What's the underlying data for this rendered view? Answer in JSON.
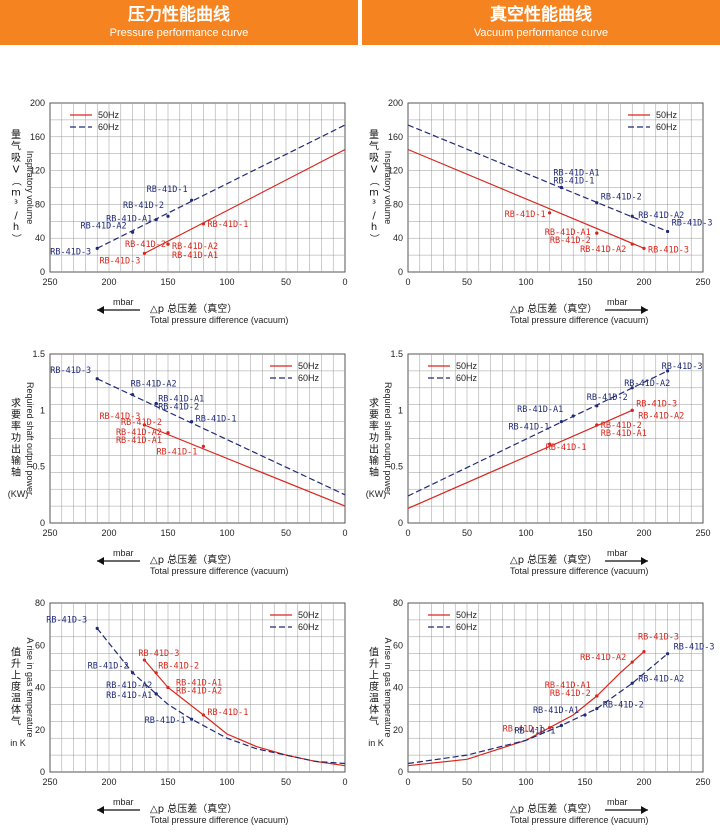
{
  "header": {
    "left": {
      "title": "压力性能曲线",
      "subtitle": "Pressure performance curve",
      "bg": "#f5831f"
    },
    "right": {
      "title": "真空性能曲线",
      "subtitle": "Vacuum performance curve",
      "bg": "#f5831f"
    }
  },
  "colors": {
    "hz50": "#d9261c",
    "hz60": "#1f2a78",
    "grid": "#9a9a9a"
  },
  "axis_footer": {
    "pressure": {
      "unit": "mbar",
      "cn": "△p  总压差（真空）",
      "en": "Total pressure difference (vacuum)"
    },
    "vacuum": {
      "unit": "mbar",
      "cn": "△p  总压差（真空）",
      "en": "Total pressure difference (vacuum)"
    }
  },
  "chart_data": [
    {
      "type": "line",
      "id": "pressure-volume",
      "ylabel_cn": "量气吸V（m³/h）",
      "ylabel_en": "Inspiratory volume",
      "ylabel_unit": "",
      "xlim": [
        250,
        0
      ],
      "ylim": [
        0,
        200
      ],
      "xticks": [
        250,
        200,
        150,
        100,
        50,
        0
      ],
      "yticks": [
        0,
        40,
        80,
        120,
        160,
        200
      ],
      "legend": "top-left",
      "series": [
        {
          "name": "50Hz",
          "style": "solid",
          "x": [
            170,
            0
          ],
          "y": [
            22,
            145
          ]
        },
        {
          "name": "60Hz",
          "style": "dashed",
          "x": [
            210,
            0
          ],
          "y": [
            28,
            174
          ]
        }
      ],
      "labels": [
        {
          "text": "RB-41D-1",
          "s": 0,
          "x": 120,
          "y": 57
        },
        {
          "text": "RB-41D-2",
          "s": 0,
          "x": 150,
          "y": 33
        },
        {
          "text": "RB-41D-A2",
          "s": 0,
          "x": 150,
          "y": 33
        },
        {
          "text": "RB-41D-A1",
          "s": 0,
          "x": 150,
          "y": 33
        },
        {
          "text": "RB-41D-3",
          "s": 0,
          "x": 170,
          "y": 22
        },
        {
          "text": "RB-41D-1",
          "s": 1,
          "x": 130,
          "y": 85
        },
        {
          "text": "RB-41D-2",
          "s": 1,
          "x": 150,
          "y": 66
        },
        {
          "text": "RB-41D-A1",
          "s": 1,
          "x": 160,
          "y": 62
        },
        {
          "text": "RB-41D-A2",
          "s": 1,
          "x": 180,
          "y": 47
        },
        {
          "text": "RB-41D-3",
          "s": 1,
          "x": 210,
          "y": 28
        }
      ]
    },
    {
      "type": "line",
      "id": "vacuum-volume",
      "ylabel_cn": "量气吸V（m³/h）",
      "ylabel_en": "Inspiratory volume",
      "ylabel_unit": "",
      "xlim": [
        0,
        250
      ],
      "ylim": [
        0,
        200
      ],
      "xticks": [
        0,
        50,
        100,
        150,
        200,
        250
      ],
      "yticks": [
        0,
        40,
        80,
        120,
        160,
        200
      ],
      "legend": "top-right",
      "series": [
        {
          "name": "50Hz",
          "style": "solid",
          "x": [
            0,
            200
          ],
          "y": [
            145,
            28
          ]
        },
        {
          "name": "60Hz",
          "style": "dashed",
          "x": [
            0,
            220
          ],
          "y": [
            174,
            48
          ]
        }
      ],
      "labels": [
        {
          "text": "RB-41D-1",
          "s": 0,
          "x": 120,
          "y": 70
        },
        {
          "text": "RB-41D-A1",
          "s": 0,
          "x": 160,
          "y": 46
        },
        {
          "text": "RB-41D-2",
          "s": 0,
          "x": 160,
          "y": 46
        },
        {
          "text": "RB-41D-A2",
          "s": 0,
          "x": 190,
          "y": 33
        },
        {
          "text": "RB-41D-3",
          "s": 0,
          "x": 200,
          "y": 28
        },
        {
          "text": "RB-41D-A1",
          "s": 1,
          "x": 130,
          "y": 100
        },
        {
          "text": "RB-41D-1",
          "s": 1,
          "x": 130,
          "y": 100
        },
        {
          "text": "RB-41D-2",
          "s": 1,
          "x": 160,
          "y": 82
        },
        {
          "text": "RB-41D-A2",
          "s": 1,
          "x": 190,
          "y": 66
        },
        {
          "text": "RB-41D-3",
          "s": 1,
          "x": 220,
          "y": 48
        }
      ]
    },
    {
      "type": "line",
      "id": "pressure-power",
      "ylabel_cn": "求要率功出输轴",
      "ylabel_en": "Required shaft output power",
      "ylabel_unit": "(KW)",
      "xlim": [
        250,
        0
      ],
      "ylim": [
        0,
        1.5
      ],
      "xticks": [
        250,
        200,
        150,
        100,
        50,
        0
      ],
      "yticks": [
        0,
        0.5,
        1,
        1.5
      ],
      "legend": "top-right",
      "series": [
        {
          "name": "50Hz",
          "style": "solid",
          "x": [
            170,
            0
          ],
          "y": [
            0.87,
            0.15
          ]
        },
        {
          "name": "60Hz",
          "style": "dashed",
          "x": [
            210,
            0
          ],
          "y": [
            1.28,
            0.25
          ]
        }
      ],
      "labels": [
        {
          "text": "RB-41D-3",
          "s": 0,
          "x": 170,
          "y": 0.87
        },
        {
          "text": "RB-41D-2",
          "s": 0,
          "x": 150,
          "y": 0.8
        },
        {
          "text": "RB-41D-A2",
          "s": 0,
          "x": 150,
          "y": 0.8
        },
        {
          "text": "RB-41D-A1",
          "s": 0,
          "x": 150,
          "y": 0.8
        },
        {
          "text": "RB-41D-1",
          "s": 0,
          "x": 120,
          "y": 0.68
        },
        {
          "text": "RB-41D-3",
          "s": 1,
          "x": 210,
          "y": 1.28
        },
        {
          "text": "RB-41D-A2",
          "s": 1,
          "x": 180,
          "y": 1.14
        },
        {
          "text": "RB-41D-A1",
          "s": 1,
          "x": 160,
          "y": 1.06
        },
        {
          "text": "RB-41D-2",
          "s": 1,
          "x": 160,
          "y": 1.06
        },
        {
          "text": "RB-41D-1",
          "s": 1,
          "x": 130,
          "y": 0.9
        }
      ]
    },
    {
      "type": "line",
      "id": "vacuum-power",
      "ylabel_cn": "求要率功出输轴",
      "ylabel_en": "Required shaft output power",
      "ylabel_unit": "(KW)",
      "xlim": [
        0,
        250
      ],
      "ylim": [
        0,
        1.5
      ],
      "xticks": [
        0,
        50,
        100,
        150,
        200,
        250
      ],
      "yticks": [
        0,
        0.5,
        1,
        1.5
      ],
      "legend": "top-left",
      "series": [
        {
          "name": "50Hz",
          "style": "solid",
          "x": [
            0,
            190
          ],
          "y": [
            0.13,
            1.0
          ]
        },
        {
          "name": "60Hz",
          "style": "dashed",
          "x": [
            0,
            220
          ],
          "y": [
            0.24,
            1.35
          ]
        }
      ],
      "labels": [
        {
          "text": "RB-41D-3",
          "s": 0,
          "x": 190,
          "y": 1.0
        },
        {
          "text": "RB-41D-A2",
          "s": 0,
          "x": 190,
          "y": 1.0
        },
        {
          "text": "RB-41D-2",
          "s": 0,
          "x": 160,
          "y": 0.87
        },
        {
          "text": "RB-41D-A1",
          "s": 0,
          "x": 160,
          "y": 0.87
        },
        {
          "text": "RB-41D-1",
          "s": 0,
          "x": 120,
          "y": 0.7
        },
        {
          "text": "RB-41D-3",
          "s": 1,
          "x": 220,
          "y": 1.35
        },
        {
          "text": "RB-41D-A2",
          "s": 1,
          "x": 190,
          "y": 1.2
        },
        {
          "text": "RB-41D-2",
          "s": 1,
          "x": 160,
          "y": 1.04
        },
        {
          "text": "RB-41D-A1",
          "s": 1,
          "x": 140,
          "y": 0.95
        },
        {
          "text": "RB-41D-1",
          "s": 1,
          "x": 130,
          "y": 0.9
        }
      ]
    },
    {
      "type": "line",
      "id": "pressure-temp",
      "ylabel_cn": "值升上度温体气",
      "ylabel_en": "A rise in gas temperature",
      "ylabel_unit": "in K",
      "xlim": [
        250,
        0
      ],
      "ylim": [
        0,
        80
      ],
      "xticks": [
        250,
        200,
        150,
        100,
        50,
        0
      ],
      "yticks": [
        0,
        20,
        40,
        60,
        80
      ],
      "legend": "top-right",
      "series": [
        {
          "name": "50Hz",
          "style": "solid",
          "x": [
            170,
            150,
            120,
            100,
            75,
            50,
            25,
            0
          ],
          "y": [
            53,
            40,
            27,
            18,
            12,
            8,
            5,
            3
          ]
        },
        {
          "name": "60Hz",
          "style": "dashed",
          "x": [
            210,
            180,
            150,
            130,
            100,
            75,
            50,
            25,
            0
          ],
          "y": [
            68,
            47,
            32,
            25,
            16,
            11,
            8,
            5,
            4
          ]
        }
      ],
      "labels": [
        {
          "text": "RB-41D-3",
          "s": 0,
          "x": 170,
          "y": 53
        },
        {
          "text": "RB-41D-2",
          "s": 0,
          "x": 160,
          "y": 47
        },
        {
          "text": "RB-41D-A1",
          "s": 0,
          "x": 150,
          "y": 40
        },
        {
          "text": "RB-41D-A2",
          "s": 0,
          "x": 150,
          "y": 40
        },
        {
          "text": "RB-41D-1",
          "s": 0,
          "x": 120,
          "y": 27
        },
        {
          "text": "RB-41D-3",
          "s": 1,
          "x": 210,
          "y": 68
        },
        {
          "text": "RB-41D-2",
          "s": 1,
          "x": 180,
          "y": 47
        },
        {
          "text": "RB-41D-A2",
          "s": 1,
          "x": 160,
          "y": 37
        },
        {
          "text": "RB-41D-A1",
          "s": 1,
          "x": 160,
          "y": 37
        },
        {
          "text": "RB-41D-1",
          "s": 1,
          "x": 130,
          "y": 25
        }
      ]
    },
    {
      "type": "line",
      "id": "vacuum-temp",
      "ylabel_cn": "值升上度温体气",
      "ylabel_en": "A rise in gas temperature",
      "ylabel_unit": "in K",
      "xlim": [
        0,
        250
      ],
      "ylim": [
        0,
        80
      ],
      "xticks": [
        0,
        50,
        100,
        150,
        200,
        250
      ],
      "yticks": [
        0,
        20,
        40,
        60,
        80
      ],
      "legend": "top-left",
      "series": [
        {
          "name": "50Hz",
          "style": "solid",
          "x": [
            0,
            50,
            100,
            120,
            140,
            160,
            180,
            200
          ],
          "y": [
            3,
            6,
            15,
            21,
            27,
            36,
            47,
            57
          ]
        },
        {
          "name": "60Hz",
          "style": "dashed",
          "x": [
            0,
            50,
            100,
            130,
            160,
            190,
            220
          ],
          "y": [
            4,
            8,
            15,
            22,
            30,
            42,
            56
          ]
        }
      ],
      "labels": [
        {
          "text": "RB-41D-3",
          "s": 0,
          "x": 200,
          "y": 57
        },
        {
          "text": "RB-41D-A2",
          "s": 0,
          "x": 190,
          "y": 52
        },
        {
          "text": "RB-41D-A1",
          "s": 0,
          "x": 160,
          "y": 36
        },
        {
          "text": "RB-41D-2",
          "s": 0,
          "x": 160,
          "y": 36
        },
        {
          "text": "RB-41D-1",
          "s": 0,
          "x": 120,
          "y": 21
        },
        {
          "text": "RB-41D-3",
          "s": 1,
          "x": 220,
          "y": 56
        },
        {
          "text": "RB-41D-A2",
          "s": 1,
          "x": 190,
          "y": 42
        },
        {
          "text": "RB-41D-2",
          "s": 1,
          "x": 160,
          "y": 30
        },
        {
          "text": "RB-41D-A1",
          "s": 1,
          "x": 150,
          "y": 27
        },
        {
          "text": "RB-41D-1",
          "s": 1,
          "x": 130,
          "y": 22
        }
      ]
    }
  ]
}
